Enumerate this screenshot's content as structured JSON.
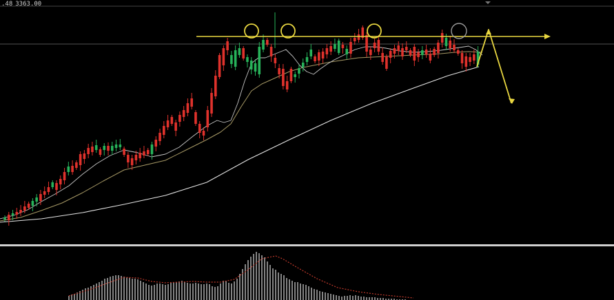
{
  "header": {
    "ohlc_fragment": ".48",
    "price": "3363.00"
  },
  "colors": {
    "background": "#000000",
    "bull": "#27b35a",
    "bear": "#e0322c",
    "ma_fast": "#c7c7c7",
    "ma_mid": "#a89a66",
    "ma_slow": "#e6e6e6",
    "annotation": "#e8d640",
    "circle_gray": "#9a9a9a",
    "pane_divider": "#d0d0d0",
    "hist": "#bdbdbd",
    "signal": "#c0392b",
    "resistance": "#e8d640"
  },
  "chart_data": {
    "type": "candlestick",
    "title": "",
    "xlabel": "",
    "ylabel": "",
    "grid": false,
    "candles": [
      [
        319,
        316
      ],
      [
        312,
        320
      ],
      [
        313,
        310
      ],
      [
        308,
        312
      ],
      [
        305,
        309
      ],
      [
        300,
        306
      ],
      [
        296,
        302
      ],
      [
        299,
        292
      ],
      [
        293,
        287
      ],
      [
        282,
        292
      ],
      [
        278,
        283
      ],
      [
        272,
        279
      ],
      [
        272,
        265
      ],
      [
        266,
        276
      ],
      [
        260,
        268
      ],
      [
        250,
        262
      ],
      [
        250,
        242
      ],
      [
        241,
        250
      ],
      [
        236,
        244
      ],
      [
        224,
        240
      ],
      [
        223,
        231
      ],
      [
        215,
        224
      ],
      [
        213,
        221
      ],
      [
        218,
        211
      ],
      [
        217,
        225
      ],
      [
        218,
        212
      ],
      [
        212,
        219
      ],
      [
        219,
        212
      ],
      [
        215,
        210
      ],
      [
        214,
        210
      ],
      [
        216,
        225
      ],
      [
        225,
        236
      ],
      [
        230,
        240
      ],
      [
        225,
        233
      ],
      [
        222,
        230
      ],
      [
        220,
        226
      ],
      [
        218,
        224
      ],
      [
        224,
        210
      ],
      [
        203,
        213
      ],
      [
        193,
        205
      ],
      [
        183,
        196
      ],
      [
        175,
        185
      ],
      [
        170,
        180
      ],
      [
        178,
        190
      ],
      [
        167,
        177
      ],
      [
        160,
        170
      ],
      [
        150,
        164
      ],
      [
        143,
        155
      ],
      [
        163,
        180
      ],
      [
        180,
        193
      ],
      [
        190,
        197
      ],
      [
        160,
        185
      ],
      [
        135,
        165
      ],
      [
        110,
        140
      ],
      [
        80,
        112
      ],
      [
        70,
        95
      ],
      [
        60,
        73
      ],
      [
        93,
        80
      ],
      [
        97,
        73
      ],
      [
        80,
        70
      ],
      [
        70,
        85
      ],
      [
        90,
        83
      ],
      [
        101,
        88
      ],
      [
        104,
        92
      ],
      [
        108,
        68
      ],
      [
        72,
        58
      ],
      [
        58,
        65
      ],
      [
        68,
        82
      ],
      [
        84,
        92
      ],
      [
        99,
        108
      ],
      [
        100,
        125
      ],
      [
        118,
        130
      ],
      [
        100,
        118
      ],
      [
        112,
        108
      ],
      [
        107,
        99
      ],
      [
        98,
        91
      ],
      [
        90,
        83
      ],
      [
        82,
        72
      ],
      [
        82,
        89
      ],
      [
        76,
        88
      ],
      [
        75,
        85
      ],
      [
        70,
        79
      ],
      [
        67,
        75
      ],
      [
        71,
        64
      ],
      [
        77,
        59
      ],
      [
        65,
        70
      ],
      [
        79,
        71
      ],
      [
        61,
        78
      ],
      [
        55,
        60
      ],
      [
        50,
        58
      ],
      [
        40,
        55
      ],
      [
        51,
        75
      ],
      [
        72,
        80
      ],
      [
        62,
        70
      ],
      [
        58,
        75
      ],
      [
        77,
        90
      ],
      [
        82,
        100
      ],
      [
        74,
        84
      ],
      [
        70,
        78
      ],
      [
        66,
        74
      ],
      [
        70,
        82
      ],
      [
        68,
        73
      ],
      [
        73,
        80
      ],
      [
        68,
        88
      ],
      [
        76,
        83
      ],
      [
        80,
        73
      ],
      [
        72,
        79
      ],
      [
        78,
        88
      ],
      [
        71,
        80
      ],
      [
        62,
        77
      ],
      [
        48,
        62
      ],
      [
        67,
        55
      ],
      [
        59,
        70
      ],
      [
        65,
        73
      ],
      [
        73,
        78
      ],
      [
        77,
        92
      ],
      [
        82,
        97
      ],
      [
        83,
        90
      ],
      [
        79,
        88
      ],
      [
        94,
        75
      ]
    ],
    "ma_fast": [
      [
        0,
        318
      ],
      [
        20,
        313
      ],
      [
        40,
        305
      ],
      [
        60,
        293
      ],
      [
        80,
        282
      ],
      [
        100,
        270
      ],
      [
        120,
        253
      ],
      [
        140,
        238
      ],
      [
        160,
        226
      ],
      [
        180,
        218
      ],
      [
        200,
        222
      ],
      [
        220,
        228
      ],
      [
        240,
        224
      ],
      [
        260,
        214
      ],
      [
        280,
        198
      ],
      [
        300,
        183
      ],
      [
        315,
        175
      ],
      [
        325,
        178
      ],
      [
        335,
        175
      ],
      [
        345,
        150
      ],
      [
        355,
        118
      ],
      [
        365,
        92
      ],
      [
        375,
        84
      ],
      [
        385,
        84
      ],
      [
        395,
        80
      ],
      [
        405,
        76
      ],
      [
        415,
        72
      ],
      [
        425,
        82
      ],
      [
        435,
        95
      ],
      [
        445,
        104
      ],
      [
        455,
        108
      ],
      [
        465,
        100
      ],
      [
        475,
        93
      ],
      [
        485,
        87
      ],
      [
        495,
        82
      ],
      [
        505,
        77
      ],
      [
        515,
        72
      ],
      [
        530,
        68
      ],
      [
        545,
        68
      ],
      [
        560,
        70
      ],
      [
        580,
        74
      ],
      [
        600,
        76
      ],
      [
        620,
        75
      ],
      [
        640,
        73
      ],
      [
        660,
        70
      ],
      [
        680,
        67
      ],
      [
        690,
        72
      ],
      [
        700,
        80
      ]
    ],
    "ma_mid": [
      [
        0,
        321
      ],
      [
        30,
        316
      ],
      [
        60,
        306
      ],
      [
        90,
        295
      ],
      [
        120,
        280
      ],
      [
        150,
        263
      ],
      [
        180,
        247
      ],
      [
        210,
        240
      ],
      [
        240,
        233
      ],
      [
        270,
        218
      ],
      [
        300,
        203
      ],
      [
        320,
        192
      ],
      [
        335,
        180
      ],
      [
        350,
        155
      ],
      [
        365,
        132
      ],
      [
        380,
        122
      ],
      [
        400,
        113
      ],
      [
        420,
        104
      ],
      [
        440,
        98
      ],
      [
        460,
        94
      ],
      [
        480,
        90
      ],
      [
        500,
        87
      ],
      [
        520,
        84
      ],
      [
        540,
        83
      ],
      [
        560,
        82
      ],
      [
        580,
        81
      ],
      [
        600,
        80
      ],
      [
        620,
        79
      ],
      [
        640,
        78
      ],
      [
        660,
        76
      ],
      [
        680,
        75
      ],
      [
        700,
        76
      ]
    ],
    "ma_slow": [
      [
        0,
        323
      ],
      [
        60,
        318
      ],
      [
        120,
        309
      ],
      [
        180,
        297
      ],
      [
        240,
        284
      ],
      [
        300,
        265
      ],
      [
        360,
        232
      ],
      [
        420,
        203
      ],
      [
        480,
        175
      ],
      [
        540,
        150
      ],
      [
        600,
        128
      ],
      [
        650,
        110
      ],
      [
        695,
        97
      ]
    ],
    "histogram": [
      [
        100,
        430
      ],
      [
        104,
        428
      ],
      [
        108,
        427
      ],
      [
        112,
        425
      ],
      [
        116,
        423
      ],
      [
        120,
        421
      ],
      [
        124,
        419
      ],
      [
        128,
        418
      ],
      [
        132,
        416
      ],
      [
        136,
        414
      ],
      [
        140,
        412
      ],
      [
        144,
        410
      ],
      [
        148,
        408
      ],
      [
        152,
        405
      ],
      [
        156,
        404
      ],
      [
        160,
        402
      ],
      [
        164,
        401
      ],
      [
        168,
        400
      ],
      [
        172,
        400
      ],
      [
        176,
        401
      ],
      [
        180,
        402
      ],
      [
        184,
        403
      ],
      [
        188,
        404
      ],
      [
        192,
        405
      ],
      [
        196,
        405
      ],
      [
        200,
        406
      ],
      [
        204,
        408
      ],
      [
        208,
        410
      ],
      [
        212,
        412
      ],
      [
        216,
        414
      ],
      [
        220,
        415
      ],
      [
        224,
        414
      ],
      [
        228,
        412
      ],
      [
        232,
        412
      ],
      [
        236,
        413
      ],
      [
        240,
        414
      ],
      [
        244,
        413
      ],
      [
        248,
        411
      ],
      [
        252,
        410
      ],
      [
        256,
        410
      ],
      [
        260,
        409
      ],
      [
        264,
        408
      ],
      [
        268,
        410
      ],
      [
        272,
        411
      ],
      [
        276,
        412
      ],
      [
        280,
        412
      ],
      [
        284,
        411
      ],
      [
        288,
        412
      ],
      [
        292,
        413
      ],
      [
        296,
        413
      ],
      [
        300,
        412
      ],
      [
        304,
        413
      ],
      [
        308,
        416
      ],
      [
        312,
        417
      ],
      [
        316,
        416
      ],
      [
        320,
        412
      ],
      [
        324,
        408
      ],
      [
        328,
        408
      ],
      [
        332,
        411
      ],
      [
        336,
        412
      ],
      [
        340,
        409
      ],
      [
        344,
        405
      ],
      [
        348,
        398
      ],
      [
        352,
        391
      ],
      [
        356,
        384
      ],
      [
        360,
        378
      ],
      [
        364,
        373
      ],
      [
        368,
        369
      ],
      [
        372,
        366
      ],
      [
        376,
        368
      ],
      [
        380,
        371
      ],
      [
        384,
        374
      ],
      [
        388,
        380
      ],
      [
        392,
        385
      ],
      [
        396,
        390
      ],
      [
        400,
        392
      ],
      [
        404,
        396
      ],
      [
        408,
        398
      ],
      [
        412,
        400
      ],
      [
        416,
        404
      ],
      [
        420,
        406
      ],
      [
        424,
        408
      ],
      [
        428,
        410
      ],
      [
        432,
        410
      ],
      [
        436,
        412
      ],
      [
        440,
        413
      ],
      [
        444,
        414
      ],
      [
        448,
        416
      ],
      [
        452,
        418
      ],
      [
        456,
        420
      ],
      [
        460,
        421
      ],
      [
        464,
        423
      ],
      [
        468,
        424
      ],
      [
        472,
        425
      ],
      [
        476,
        426
      ],
      [
        480,
        427
      ],
      [
        484,
        428
      ],
      [
        488,
        429
      ],
      [
        492,
        430
      ],
      [
        496,
        431
      ],
      [
        500,
        430
      ],
      [
        504,
        430
      ],
      [
        508,
        429
      ],
      [
        512,
        430
      ],
      [
        516,
        429
      ],
      [
        520,
        430
      ],
      [
        524,
        431
      ],
      [
        528,
        431
      ],
      [
        532,
        432
      ],
      [
        536,
        432
      ],
      [
        540,
        432
      ],
      [
        544,
        432
      ],
      [
        548,
        433
      ],
      [
        552,
        433
      ],
      [
        556,
        433
      ],
      [
        560,
        434
      ],
      [
        564,
        434
      ],
      [
        568,
        434
      ],
      [
        572,
        434
      ],
      [
        576,
        435
      ],
      [
        580,
        435
      ],
      [
        584,
        435
      ],
      [
        588,
        435
      ],
      [
        592,
        436
      ]
    ],
    "signal": [
      [
        100,
        430
      ],
      [
        130,
        421
      ],
      [
        160,
        410
      ],
      [
        180,
        403
      ],
      [
        200,
        404
      ],
      [
        220,
        409
      ],
      [
        240,
        411
      ],
      [
        260,
        410
      ],
      [
        280,
        409
      ],
      [
        300,
        410
      ],
      [
        320,
        410
      ],
      [
        340,
        406
      ],
      [
        360,
        392
      ],
      [
        380,
        376
      ],
      [
        400,
        372
      ],
      [
        410,
        376
      ],
      [
        430,
        388
      ],
      [
        460,
        405
      ],
      [
        490,
        418
      ],
      [
        520,
        424
      ],
      [
        550,
        428
      ],
      [
        580,
        431
      ],
      [
        600,
        433
      ]
    ],
    "resistance_y": 53,
    "projection": [
      [
        692,
        97
      ],
      [
        709,
        43
      ],
      [
        742,
        150
      ]
    ],
    "circles": [
      [
        365,
        45,
        10
      ],
      [
        418,
        45,
        10
      ],
      [
        543,
        45,
        10
      ]
    ],
    "circle_last": [
      666,
      45,
      11
    ]
  }
}
